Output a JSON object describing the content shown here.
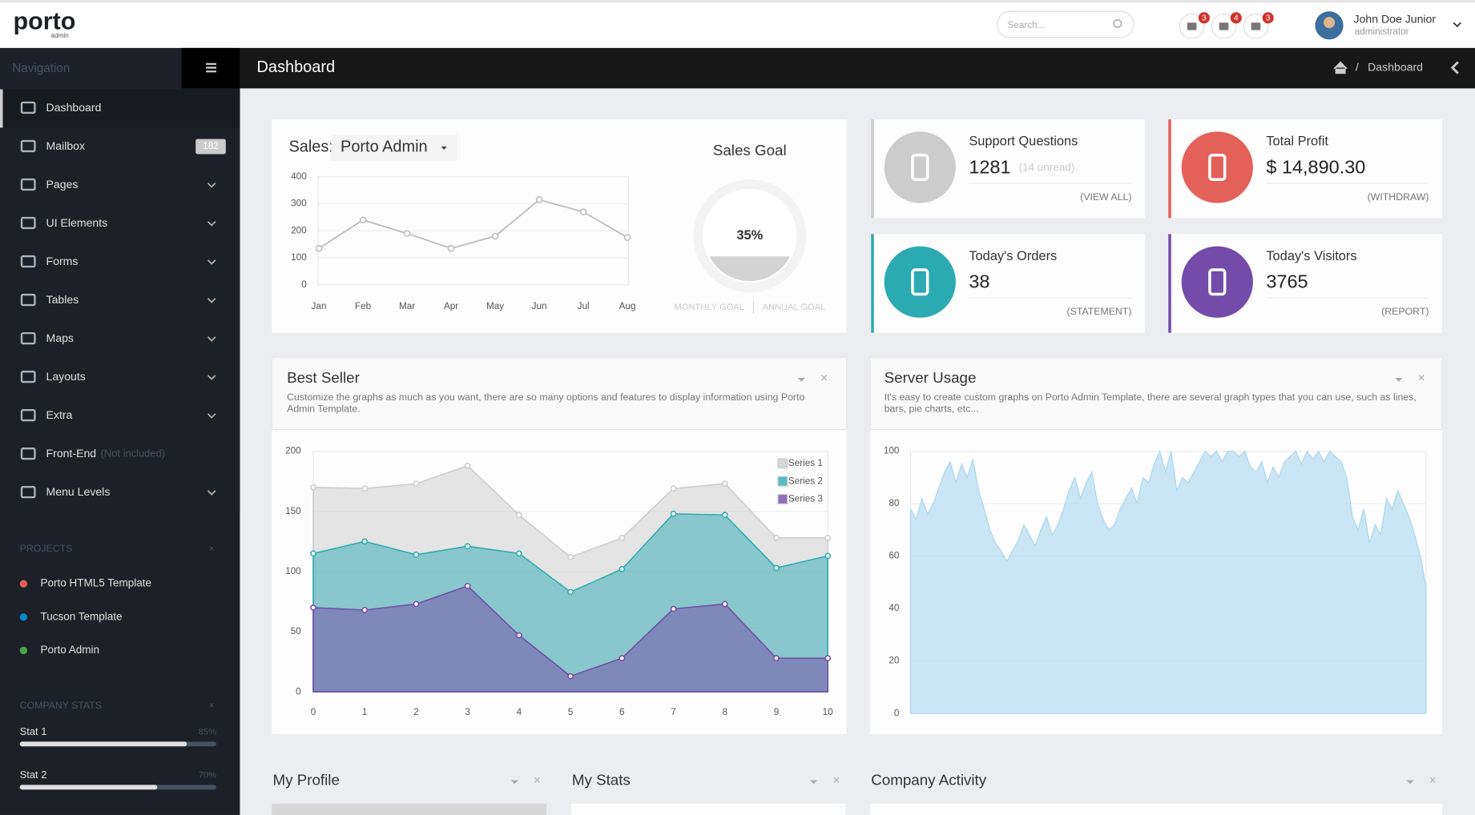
{
  "header": {
    "logo": "porto",
    "logo_sub": "admin",
    "search_placeholder": "Search...",
    "notifications": [
      3,
      4,
      3
    ],
    "user_name": "John Doe Junior",
    "user_role": "administrator"
  },
  "page": {
    "title": "Dashboard",
    "breadcrumb": "Dashboard"
  },
  "sidebar": {
    "heading": "Navigation",
    "items": [
      {
        "label": "Dashboard"
      },
      {
        "label": "Mailbox",
        "badge": 182
      },
      {
        "label": "Pages"
      },
      {
        "label": "UI Elements"
      },
      {
        "label": "Forms"
      },
      {
        "label": "Tables"
      },
      {
        "label": "Maps"
      },
      {
        "label": "Layouts"
      },
      {
        "label": "Extra"
      },
      {
        "label": "Front-End",
        "note": "(Not included)"
      },
      {
        "label": "Menu Levels"
      }
    ],
    "projects_heading": "PROJECTS",
    "projects": [
      {
        "name": "Porto HTML5 Template",
        "color": "#e36159"
      },
      {
        "name": "Tucson Template",
        "color": "#0088cc"
      },
      {
        "name": "Porto Admin",
        "color": "#47a447"
      }
    ],
    "stats_heading": "COMPANY STATS",
    "stats": [
      {
        "name": "Stat 1",
        "value": {
          "value": 85,
          "label": "85%"
        }
      },
      {
        "name": "Stat 2",
        "value": {
          "value": 70,
          "label": "70%"
        }
      }
    ]
  },
  "sales": {
    "label": "Sales:",
    "selector": "Porto Admin",
    "chart": {
      "type": "line",
      "categories": [
        "Jan",
        "Feb",
        "Mar",
        "Apr",
        "May",
        "Jun",
        "Jul",
        "Aug"
      ],
      "values": [
        135,
        240,
        190,
        135,
        180,
        315,
        270,
        175
      ],
      "color": "#bbbbbb",
      "ylim": [
        0,
        400
      ],
      "yticks": [
        0,
        100,
        200,
        300,
        400
      ],
      "grid": true
    }
  },
  "sales_goal": {
    "title": "Sales Goal",
    "type": "pie",
    "value": 35,
    "value_label": "35%",
    "color": "#d3d3d3",
    "legend": [
      "MONTHLY GOAL",
      "ANNUAL GOAL"
    ]
  },
  "widgets": [
    {
      "title": "Support Questions",
      "value": 1281,
      "note": "(14 unread)",
      "link": "(VIEW ALL)",
      "color": "#cccccc"
    },
    {
      "title": "Total Profit",
      "value": "$ 14,890.30",
      "link": "(WITHDRAW)",
      "color": "#e36159"
    },
    {
      "title": "Today's Orders",
      "value": 38,
      "link": "(STATEMENT)",
      "color": "#2baab1"
    },
    {
      "title": "Today's Visitors",
      "value": 3765,
      "link": "(REPORT)",
      "color": "#734ba9"
    }
  ],
  "best_seller": {
    "title": "Best Seller",
    "description": "Customize the graphs as much as you want, there are so many options and features to display information using Porto Admin Template.",
    "chart": {
      "type": "area",
      "x": [
        0,
        1,
        2,
        3,
        4,
        5,
        6,
        7,
        8,
        9,
        10
      ],
      "xlim": [
        0,
        10
      ],
      "xticks": [
        0,
        1,
        2,
        3,
        4,
        5,
        6,
        7,
        8,
        9,
        10
      ],
      "ylim": [
        0,
        200
      ],
      "yticks": [
        0,
        50,
        100,
        150,
        200
      ],
      "grid": true,
      "legend": "upper right",
      "series": [
        {
          "name": "Series 1",
          "color": "#cccccc",
          "values": [
            170,
            169,
            173,
            188,
            147,
            112,
            128,
            169,
            173,
            128,
            128
          ]
        },
        {
          "name": "Series 2",
          "color": "#2baab1",
          "values": [
            115,
            125,
            114,
            121,
            115,
            83,
            102,
            148,
            147,
            103,
            113
          ]
        },
        {
          "name": "Series 3",
          "color": "#734ba9",
          "values": [
            70,
            68,
            73,
            88,
            47,
            13,
            28,
            69,
            73,
            28,
            28
          ]
        }
      ]
    }
  },
  "server_usage": {
    "title": "Server Usage",
    "description": "It's easy to create custom graphs on Porto Admin Template, there are several graph types that you can use, such as lines, bars, pie charts, etc...",
    "chart": {
      "type": "area",
      "color": "#a9d7ee",
      "ylim": [
        0,
        100
      ],
      "yticks": [
        0,
        20,
        40,
        60,
        80,
        100
      ],
      "grid": true,
      "values": [
        78,
        74,
        82,
        76,
        80,
        86,
        92,
        96,
        88,
        95,
        90,
        97,
        85,
        78,
        70,
        65,
        62,
        58,
        62,
        66,
        72,
        68,
        64,
        70,
        75,
        68,
        72,
        78,
        85,
        90,
        82,
        88,
        92,
        80,
        74,
        70,
        72,
        78,
        82,
        86,
        80,
        90,
        88,
        95,
        100,
        92,
        100,
        85,
        90,
        88,
        92,
        96,
        100,
        98,
        100,
        96,
        100,
        100,
        98,
        100,
        94,
        92,
        96,
        88,
        94,
        90,
        96,
        98,
        100,
        95,
        100,
        97,
        100,
        96,
        100,
        98,
        96,
        90,
        75,
        70,
        78,
        65,
        72,
        68,
        82,
        78,
        85,
        80,
        75,
        68,
        60,
        48
      ]
    }
  },
  "bottom_panels": [
    "My Profile",
    "My Stats",
    "Company Activity"
  ]
}
